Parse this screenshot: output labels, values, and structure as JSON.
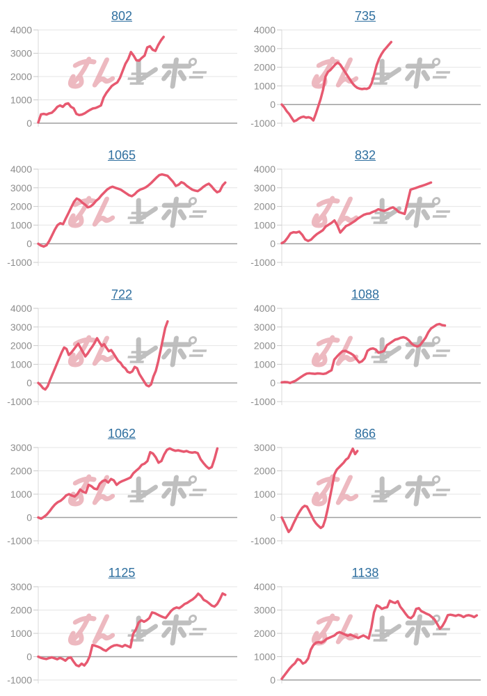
{
  "style": {
    "line_color": "#e75970",
    "title_color": "#2f6f9f",
    "label_color": "#8d8d8d",
    "grid_color": "#e4e4e4",
    "tick_color": "#c9c9c9",
    "axis_color": "#d9d9d9",
    "zero_line_color": "#9f9f9f",
    "watermark_pink": "#e9a8b1",
    "watermark_gray": "#b0b0b0",
    "background": "#ffffff"
  },
  "watermark": {
    "text": "みんレポ"
  },
  "chart_data": [
    {
      "type": "line",
      "title": "802",
      "grid": true,
      "legend": "none",
      "yticks": [
        4000,
        3000,
        2000,
        1000,
        0
      ],
      "ylim": [
        0,
        4000
      ],
      "end_frac": 0.63,
      "values": [
        30,
        380,
        400,
        370,
        420,
        450,
        560,
        700,
        760,
        700,
        820,
        850,
        700,
        640,
        400,
        350,
        370,
        420,
        500,
        570,
        630,
        650,
        700,
        760,
        1100,
        1300,
        1450,
        1600,
        1680,
        1750,
        1950,
        2250,
        2550,
        2750,
        3050,
        2900,
        2700,
        2680,
        2800,
        2900,
        3250,
        3300,
        3150,
        3100,
        3350,
        3550,
        3700
      ]
    },
    {
      "type": "line",
      "title": "735",
      "grid": true,
      "legend": "none",
      "yticks": [
        4000,
        3000,
        2000,
        1000,
        0,
        -1000
      ],
      "ylim": [
        -1000,
        4000
      ],
      "end_frac": 0.55,
      "values": [
        0,
        -150,
        -350,
        -500,
        -700,
        -900,
        -850,
        -750,
        -680,
        -650,
        -700,
        -680,
        -720,
        -850,
        -500,
        -100,
        300,
        800,
        1500,
        1750,
        1850,
        2000,
        2150,
        2250,
        2150,
        1950,
        1750,
        1550,
        1350,
        1150,
        1000,
        900,
        850,
        830,
        850,
        840,
        900,
        1150,
        1600,
        2100,
        2450,
        2700,
        2900,
        3050,
        3200,
        3350
      ]
    },
    {
      "type": "line",
      "title": "1065",
      "grid": true,
      "legend": "none",
      "yticks": [
        4000,
        3000,
        2000,
        1000,
        0,
        -1000
      ],
      "ylim": [
        -1000,
        4000
      ],
      "end_frac": 0.94,
      "values": [
        0,
        -100,
        -150,
        -80,
        150,
        450,
        750,
        1000,
        1100,
        1050,
        1350,
        1650,
        1950,
        2250,
        2420,
        2350,
        2200,
        2100,
        1950,
        2000,
        2120,
        2300,
        2420,
        2600,
        2750,
        2900,
        3000,
        3060,
        3000,
        2950,
        2900,
        2800,
        2700,
        2600,
        2550,
        2650,
        2800,
        2900,
        2950,
        3020,
        3120,
        3250,
        3400,
        3550,
        3680,
        3720,
        3680,
        3640,
        3480,
        3320,
        3100,
        3160,
        3300,
        3240,
        3100,
        3000,
        2900,
        2850,
        2820,
        2920,
        3050,
        3150,
        3220,
        3080,
        2900,
        2760,
        2820,
        3120,
        3280
      ]
    },
    {
      "type": "line",
      "title": "832",
      "grid": true,
      "legend": "none",
      "yticks": [
        4000,
        3000,
        2000,
        1000,
        0,
        -1000
      ],
      "ylim": [
        -1000,
        4000
      ],
      "end_frac": 0.75,
      "values": [
        30,
        120,
        320,
        560,
        620,
        600,
        650,
        480,
        230,
        150,
        220,
        380,
        520,
        620,
        720,
        920,
        1020,
        1120,
        1250,
        980,
        600,
        780,
        950,
        1020,
        1120,
        1220,
        1350,
        1450,
        1550,
        1600,
        1620,
        1700,
        1760,
        1850,
        1800,
        1760,
        1820,
        1900,
        1950,
        1850,
        1700,
        1650,
        1600,
        2250,
        2900,
        2950,
        3000,
        3060,
        3110,
        3160,
        3220,
        3280
      ]
    },
    {
      "type": "line",
      "title": "722",
      "grid": true,
      "legend": "none",
      "yticks": [
        4000,
        3000,
        2000,
        1000,
        0,
        -1000
      ],
      "ylim": [
        -1000,
        4000
      ],
      "end_frac": 0.65,
      "values": [
        0,
        -120,
        -280,
        -350,
        -180,
        150,
        450,
        750,
        1050,
        1350,
        1650,
        1900,
        1820,
        1500,
        1620,
        1780,
        1950,
        2100,
        1880,
        1650,
        1420,
        1580,
        1780,
        1950,
        2150,
        2400,
        2180,
        1980,
        2080,
        1880,
        1700,
        1760,
        1580,
        1380,
        1180,
        1080,
        880,
        780,
        600,
        550,
        620,
        860,
        790,
        480,
        280,
        80,
        -120,
        -180,
        -80,
        350,
        650,
        1150,
        1750,
        2350,
        2950,
        3300
      ]
    },
    {
      "type": "line",
      "title": "1088",
      "grid": true,
      "legend": "none",
      "yticks": [
        4000,
        3000,
        2000,
        1000,
        0,
        -1000
      ],
      "ylim": [
        -1000,
        4000
      ],
      "end_frac": 0.82,
      "values": [
        30,
        50,
        40,
        0,
        60,
        120,
        220,
        320,
        420,
        500,
        520,
        500,
        490,
        510,
        500,
        480,
        510,
        600,
        680,
        1250,
        1420,
        1580,
        1700,
        1720,
        1650,
        1580,
        1480,
        1280,
        1100,
        1160,
        1320,
        1720,
        1820,
        1850,
        1790,
        1620,
        1660,
        1720,
        2020,
        2120,
        2220,
        2320,
        2360,
        2420,
        2450,
        2400,
        2280,
        2100,
        2000,
        1960,
        2020,
        2220,
        2420,
        2720,
        2920,
        3020,
        3120,
        3160,
        3100,
        3080
      ]
    },
    {
      "type": "line",
      "title": "1062",
      "grid": true,
      "legend": "none",
      "yticks": [
        3000,
        2000,
        1000,
        0,
        -1000
      ],
      "ylim": [
        -1000,
        3000
      ],
      "end_frac": 0.9,
      "values": [
        0,
        -50,
        20,
        120,
        260,
        420,
        560,
        660,
        720,
        820,
        950,
        1000,
        940,
        900,
        1010,
        1200,
        1100,
        1060,
        1400,
        1340,
        1240,
        1210,
        1450,
        1560,
        1600,
        1500,
        1650,
        1590,
        1400,
        1500,
        1560,
        1610,
        1660,
        1720,
        1900,
        2010,
        2110,
        2260,
        2310,
        2420,
        2800,
        2740,
        2580,
        2350,
        2420,
        2700,
        2900,
        2960,
        2900,
        2860,
        2880,
        2850,
        2820,
        2850,
        2800,
        2780,
        2800,
        2760,
        2500,
        2340,
        2200,
        2100,
        2160,
        2520,
        2960
      ]
    },
    {
      "type": "line",
      "title": "866",
      "grid": true,
      "legend": "none",
      "yticks": [
        3000,
        2000,
        1000,
        0,
        -1000
      ],
      "ylim": [
        -1000,
        3000
      ],
      "end_frac": 0.38,
      "values": [
        0,
        -200,
        -420,
        -620,
        -500,
        -280,
        -80,
        120,
        280,
        420,
        500,
        470,
        280,
        80,
        -120,
        -260,
        -360,
        -450,
        -380,
        -80,
        350,
        850,
        1350,
        1850,
        2050,
        2150,
        2250,
        2350,
        2480,
        2550,
        2750,
        2950,
        2720,
        2850
      ]
    },
    {
      "type": "line",
      "title": "1125",
      "grid": true,
      "legend": "none",
      "yticks": [
        3000,
        2000,
        1000,
        0,
        -1000
      ],
      "ylim": [
        -1000,
        3000
      ],
      "end_frac": 0.94,
      "values": [
        0,
        -50,
        -80,
        -100,
        -60,
        -30,
        -70,
        -110,
        -50,
        -100,
        -170,
        -60,
        -30,
        -210,
        -360,
        -410,
        -300,
        -380,
        -230,
        20,
        500,
        470,
        430,
        380,
        300,
        250,
        350,
        430,
        480,
        500,
        470,
        430,
        500,
        450,
        400,
        980,
        1160,
        1460,
        1560,
        1500,
        1560,
        1660,
        1900,
        1870,
        1810,
        1750,
        1700,
        1660,
        1810,
        1960,
        2060,
        2110,
        2080,
        2160,
        2260,
        2310,
        2390,
        2460,
        2560,
        2700,
        2610,
        2440,
        2380,
        2290,
        2190,
        2150,
        2260,
        2460,
        2710,
        2650
      ]
    },
    {
      "type": "line",
      "title": "1138",
      "grid": true,
      "legend": "none",
      "yticks": [
        4000,
        3000,
        2000,
        1000,
        0
      ],
      "ylim": [
        0,
        4000
      ],
      "end_frac": 0.98,
      "values": [
        50,
        200,
        350,
        500,
        620,
        720,
        900,
        850,
        700,
        760,
        920,
        1300,
        1500,
        1600,
        1620,
        1600,
        1660,
        1760,
        1810,
        1860,
        1910,
        2010,
        2050,
        2000,
        1950,
        1900,
        1950,
        1900,
        1850,
        1800,
        1860,
        1910,
        1850,
        1780,
        2250,
        2900,
        3200,
        3150,
        3050,
        3100,
        3120,
        3400,
        3340,
        3300,
        3380,
        3140,
        3000,
        2840,
        2700,
        2650,
        2760,
        3050,
        3080,
        2950,
        2900,
        2840,
        2790,
        2700,
        2590,
        2400,
        2200,
        2320,
        2520,
        2780,
        2800,
        2780,
        2750,
        2790,
        2760,
        2700,
        2760,
        2780,
        2750,
        2700,
        2770
      ]
    }
  ]
}
